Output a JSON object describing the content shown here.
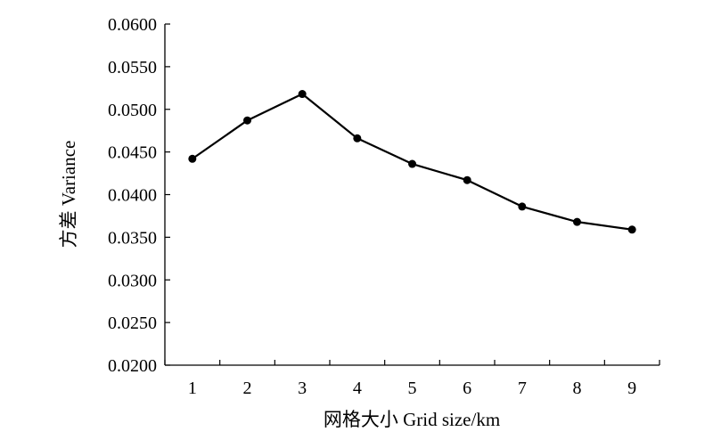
{
  "chart_data": {
    "type": "line",
    "x": [
      1,
      2,
      3,
      4,
      5,
      6,
      7,
      8,
      9
    ],
    "series": [
      {
        "values": [
          0.0442,
          0.0487,
          0.0518,
          0.0466,
          0.0436,
          0.0417,
          0.0386,
          0.0368,
          0.0359
        ]
      }
    ],
    "xlabel": "网格大小  Grid size/km",
    "ylabel": "方差  Variance",
    "xlim": [
      0.5,
      9.5
    ],
    "ylim": [
      0.02,
      0.06
    ],
    "yticks": [
      "0.0200",
      "0.0250",
      "0.0300",
      "0.0350",
      "0.0400",
      "0.0450",
      "0.0500",
      "0.0550",
      "0.0600"
    ],
    "xticks": [
      "1",
      "2",
      "3",
      "4",
      "5",
      "6",
      "7",
      "8",
      "9"
    ],
    "grid": false,
    "line_color": "#000000",
    "marker": "filled-circle"
  }
}
